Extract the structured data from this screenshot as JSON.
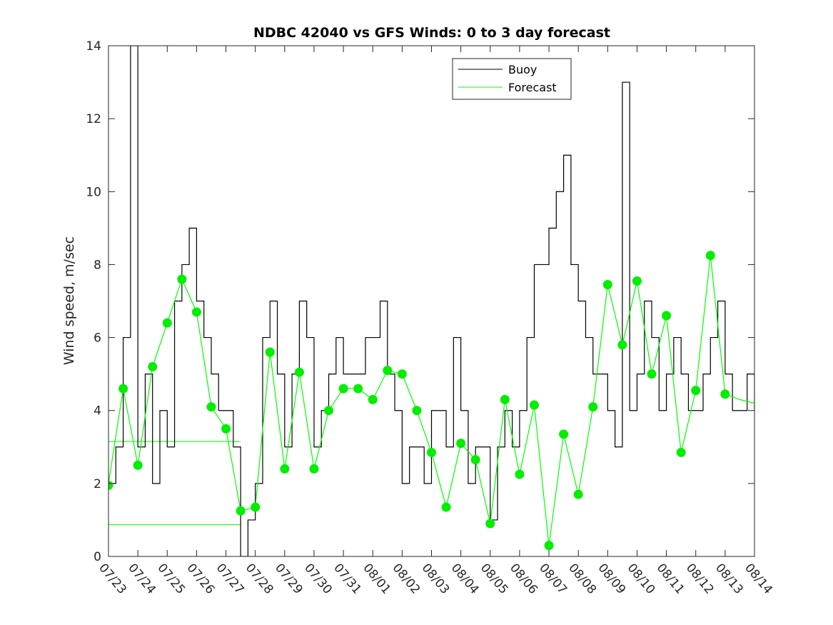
{
  "chart_data": {
    "type": "line",
    "title": "NDBC 42040 vs GFS Winds: 0 to 3 day forecast",
    "xlabel": "",
    "ylabel": "Wind speed, m/sec",
    "x_tick_labels": [
      "07/23",
      "07/24",
      "07/25",
      "07/26",
      "07/27",
      "07/28",
      "07/29",
      "07/30",
      "07/31",
      "08/01",
      "08/02",
      "08/03",
      "08/04",
      "08/05",
      "08/06",
      "08/07",
      "08/08",
      "08/09",
      "08/10",
      "08/11",
      "08/12",
      "08/13",
      "08/14"
    ],
    "y_ticks": [
      0,
      2,
      4,
      6,
      8,
      10,
      12,
      14
    ],
    "xlim_days": [
      0,
      22
    ],
    "ylim": [
      0,
      14
    ],
    "grid": false,
    "legend": {
      "position": "top-center",
      "entries": [
        "Buoy",
        "Forecast"
      ]
    },
    "colors": {
      "buoy": "#000000",
      "forecast": "#00ff00",
      "marker": "#00ee00"
    },
    "series": [
      {
        "name": "Buoy",
        "x_days": [
          0,
          0.25,
          0.5,
          0.75,
          1.0,
          1.25,
          1.5,
          1.75,
          2.0,
          2.25,
          2.5,
          2.75,
          3.0,
          3.25,
          3.5,
          3.75,
          4.0,
          4.25,
          4.5,
          4.75,
          5.0,
          5.25,
          5.5,
          5.75,
          6.0,
          6.25,
          6.5,
          6.75,
          7.0,
          7.25,
          7.5,
          7.75,
          8.0,
          8.25,
          8.5,
          8.75,
          9.0,
          9.25,
          9.5,
          9.75,
          10.0,
          10.25,
          10.5,
          10.75,
          11.0,
          11.25,
          11.5,
          11.75,
          12.0,
          12.25,
          12.5,
          12.75,
          13.0,
          13.25,
          13.5,
          13.75,
          14.0,
          14.25,
          14.5,
          14.75,
          15.0,
          15.25,
          15.5,
          15.75,
          16.0,
          16.25,
          16.5,
          16.75,
          17.0,
          17.25,
          17.5,
          17.75,
          18.0,
          18.25,
          18.5,
          18.75,
          19.0,
          19.25,
          19.5,
          19.75,
          20.0,
          20.25,
          20.5,
          20.75,
          21.0,
          21.25,
          21.5,
          21.75,
          22.0
        ],
        "values": [
          2,
          3,
          6,
          14,
          3,
          5,
          2,
          4,
          3,
          7,
          8,
          9,
          7,
          6,
          5,
          4,
          4,
          3,
          0,
          1,
          2,
          6,
          7,
          5,
          3,
          5,
          7,
          6,
          3,
          4,
          5,
          6,
          5,
          5,
          5,
          6,
          6,
          7,
          5,
          4,
          2,
          3,
          3,
          2,
          4,
          4,
          3,
          6,
          4,
          2,
          3,
          3,
          1,
          3,
          4,
          3,
          4,
          6,
          8,
          8,
          9,
          10,
          11,
          8,
          7,
          6,
          5,
          5,
          4,
          3,
          13,
          4,
          5,
          7,
          6,
          4,
          5,
          6,
          5,
          4,
          4,
          5,
          6,
          7,
          5,
          4,
          4,
          5,
          4
        ]
      },
      {
        "name": "Forecast",
        "x_days": [
          0,
          0.5,
          1.0,
          1.5,
          2.0,
          2.5,
          3.0,
          3.5,
          4.0,
          4.5,
          5.0,
          5.5,
          6.0,
          6.5,
          7.0,
          7.5,
          8.0,
          8.5,
          9.0,
          9.5,
          10.0,
          10.5,
          11.0,
          11.5,
          12.0,
          12.5,
          13.0,
          13.5,
          14.0,
          14.5,
          15.0,
          15.5,
          16.0,
          16.5,
          17.0,
          17.5,
          18.0,
          18.5,
          19.0,
          19.5,
          20.0,
          20.5,
          21.0,
          21.5,
          22.0
        ],
        "values": [
          2.0,
          4.6,
          2.5,
          5.2,
          6.4,
          7.6,
          6.7,
          4.1,
          3.5,
          1.25,
          1.35,
          5.6,
          2.4,
          5.05,
          2.4,
          4.0,
          4.6,
          4.6,
          4.3,
          5.1,
          5.0,
          4.0,
          2.85,
          1.35,
          3.1,
          2.65,
          0.9,
          4.3,
          2.25,
          4.15,
          0.3,
          3.35,
          1.7,
          4.1,
          7.45,
          5.8,
          7.55,
          5.0,
          6.6,
          2.85,
          4.55,
          8.25,
          4.45,
          4.3,
          4.2
        ]
      }
    ],
    "markers": {
      "x_days": [
        0,
        0.5,
        1.0,
        1.5,
        2.0,
        2.5,
        3.0,
        3.5,
        4.0,
        4.5,
        5.0,
        5.5,
        6.0,
        6.5,
        7.0,
        7.5,
        8.0,
        8.5,
        9.0,
        9.5,
        10.0,
        10.5,
        11.0,
        11.5,
        12.0,
        12.5,
        13.0,
        13.5,
        14.0,
        14.5,
        15.0,
        15.5,
        16.0,
        16.5,
        17.0,
        17.5,
        18.0,
        18.5,
        19.0,
        19.5,
        20.0,
        20.5,
        21.0
      ],
      "values": [
        1.95,
        4.6,
        2.5,
        5.2,
        6.4,
        7.6,
        6.7,
        4.1,
        3.5,
        1.25,
        1.35,
        5.6,
        2.4,
        5.05,
        2.4,
        4.0,
        4.6,
        4.6,
        4.3,
        5.1,
        5.0,
        4.0,
        2.85,
        1.35,
        3.1,
        2.65,
        0.9,
        4.3,
        2.25,
        4.15,
        0.3,
        3.35,
        1.7,
        4.1,
        7.45,
        5.8,
        7.55,
        5.0,
        6.6,
        2.85,
        4.55,
        8.25,
        4.45
      ]
    },
    "reference_lines": [
      {
        "x_range": [
          0,
          4.5
        ],
        "y": 3.15
      },
      {
        "x_range": [
          0,
          4.5
        ],
        "y": 0.87
      }
    ]
  }
}
